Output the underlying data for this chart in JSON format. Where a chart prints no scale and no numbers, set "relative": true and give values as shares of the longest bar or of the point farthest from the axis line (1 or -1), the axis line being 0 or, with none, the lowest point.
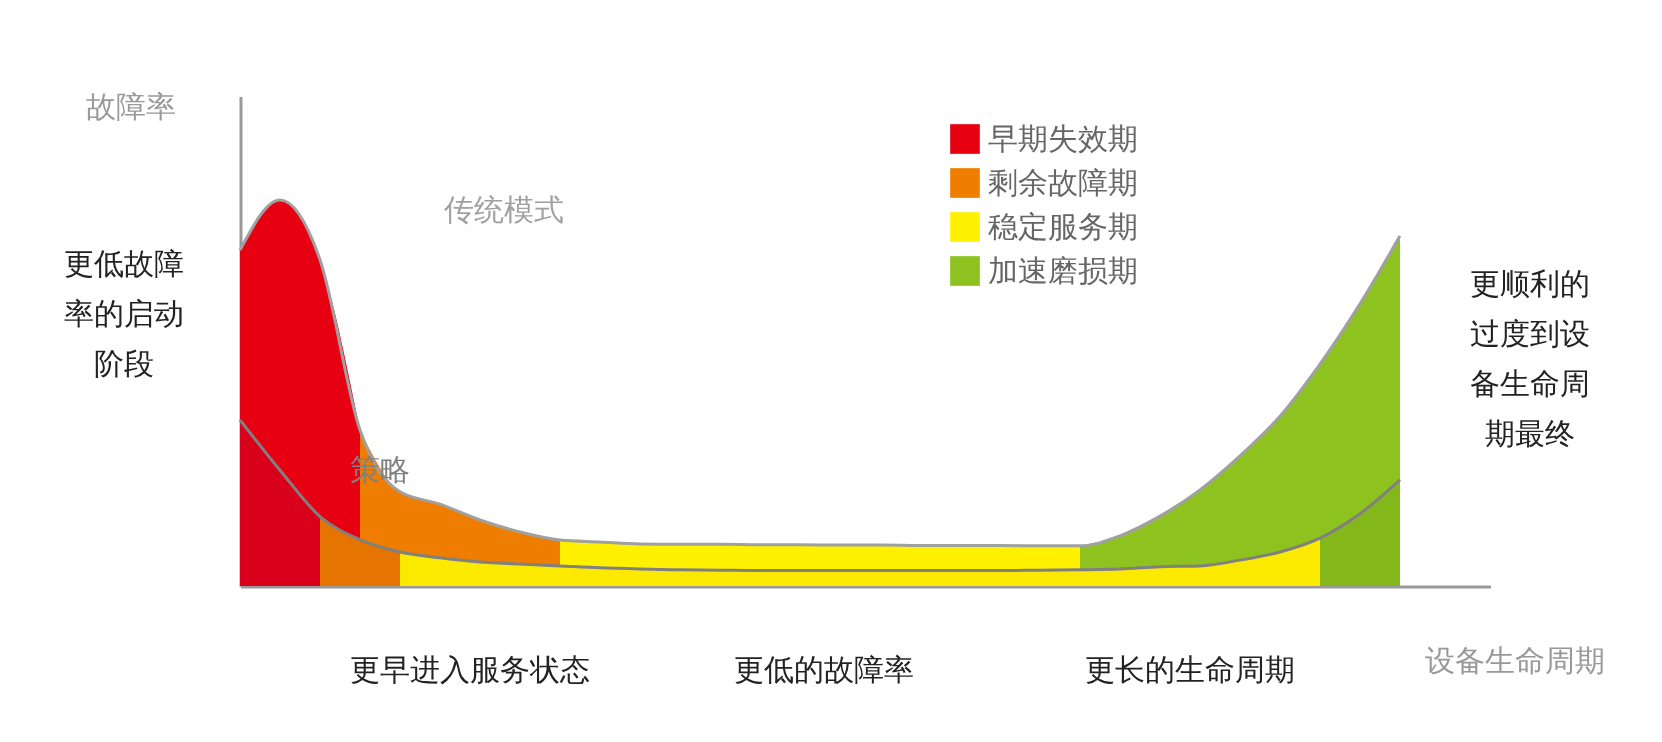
{
  "chart_data": {
    "type": "area",
    "relative": true,
    "xlabel": "设备生命周期",
    "ylabel": "故障率",
    "legend": "top right",
    "grid": false,
    "tick_labels": false,
    "categories": [
      null,
      null,
      null,
      null,
      null,
      null,
      null,
      null,
      null,
      null,
      null,
      null,
      null,
      null,
      null,
      null,
      null,
      null,
      null,
      null,
      null,
      null,
      null,
      null,
      null,
      null,
      null,
      null,
      null,
      null
    ],
    "series": [
      {
        "name": "早期失效期",
        "color": "#e60012",
        "values": [
          0.87,
          1.0,
          0.845,
          0.404,
          null,
          null,
          null,
          null,
          null,
          null,
          null,
          null,
          null,
          null,
          null,
          null,
          null,
          null,
          null,
          null,
          null,
          null,
          null,
          null,
          null,
          null,
          null,
          null,
          null,
          null
        ]
      },
      {
        "name": "剩余故障期",
        "color": "#ee7d00",
        "values": [
          null,
          null,
          null,
          0.404,
          0.244,
          0.212,
          0.171,
          0.14,
          0.119,
          null,
          null,
          null,
          null,
          null,
          null,
          null,
          null,
          null,
          null,
          null,
          null,
          null,
          null,
          null,
          null,
          null,
          null,
          null,
          null,
          null
        ]
      },
      {
        "name": "稳定服务期",
        "color": "#fff100",
        "values": [
          null,
          null,
          null,
          null,
          null,
          null,
          null,
          null,
          0.119,
          0.114,
          0.109,
          0.108,
          0.108,
          0.107,
          0.107,
          0.106,
          0.106,
          0.105,
          0.105,
          0.105,
          0.104,
          0.104,
          null,
          null,
          null,
          null,
          null,
          null,
          null,
          null
        ]
      },
      {
        "name": "加速磨损期",
        "color": "#8dc21f",
        "values": [
          null,
          null,
          null,
          null,
          null,
          null,
          null,
          null,
          null,
          null,
          null,
          null,
          null,
          null,
          null,
          null,
          null,
          null,
          null,
          null,
          null,
          0.104,
          0.13,
          0.181,
          0.249,
          0.337,
          0.44,
          0.575,
          0.731,
          0.907
        ]
      },
      {
        "color": "#d8001a",
        "values": [
          0.43,
          0.3,
          0.18,
          null,
          null,
          null,
          null,
          null,
          null,
          null,
          null,
          null,
          null,
          null,
          null,
          null,
          null,
          null,
          null,
          null,
          null,
          null,
          null,
          null,
          null,
          null,
          null,
          null,
          null,
          null
        ]
      },
      {
        "color": "#e67400",
        "values": [
          null,
          null,
          0.18,
          0.12,
          0.088,
          null,
          null,
          null,
          null,
          null,
          null,
          null,
          null,
          null,
          null,
          null,
          null,
          null,
          null,
          null,
          null,
          null,
          null,
          null,
          null,
          null,
          null,
          null,
          null,
          null
        ]
      },
      {
        "color": "#fbe900",
        "values": [
          null,
          null,
          null,
          null,
          0.088,
          0.073,
          0.062,
          0.057,
          0.052,
          0.047,
          0.044,
          0.042,
          0.041,
          0.04,
          0.04,
          0.04,
          0.04,
          0.04,
          0.04,
          0.04,
          0.041,
          0.042,
          0.044,
          0.05,
          0.052,
          0.067,
          0.088,
          0.124,
          null,
          null
        ]
      },
      {
        "color": "#84b81a",
        "values": [
          null,
          null,
          null,
          null,
          null,
          null,
          null,
          null,
          null,
          null,
          null,
          null,
          null,
          null,
          null,
          null,
          null,
          null,
          null,
          null,
          null,
          null,
          null,
          null,
          null,
          null,
          null,
          0.124,
          0.187,
          0.275
        ]
      },
      {
        "name": "传统模式",
        "type": "line",
        "color": "#a0a0a0",
        "values": [
          0.87,
          1.0,
          0.845,
          0.404,
          0.244,
          0.212,
          0.171,
          0.14,
          0.119,
          0.114,
          0.109,
          0.108,
          0.108,
          0.107,
          0.107,
          0.106,
          0.106,
          0.105,
          0.105,
          0.105,
          0.104,
          0.104,
          0.13,
          0.181,
          0.249,
          0.337,
          0.44,
          0.575,
          0.731,
          0.907
        ]
      },
      {
        "name": "策略",
        "type": "line",
        "color": "#808080",
        "values": [
          0.43,
          0.3,
          0.18,
          0.12,
          0.088,
          0.073,
          0.062,
          0.057,
          0.052,
          0.047,
          0.044,
          0.042,
          0.041,
          0.04,
          0.04,
          0.04,
          0.04,
          0.04,
          0.04,
          0.04,
          0.041,
          0.042,
          0.044,
          0.05,
          0.052,
          0.067,
          0.088,
          0.124,
          0.187,
          0.275
        ]
      }
    ],
    "annotations": [
      "更低故障率的启动阶段",
      "更顺利的过度到设备生命周期最终",
      "更早进入服务状态",
      "更低的故障率",
      "更长的生命周期"
    ]
  }
}
